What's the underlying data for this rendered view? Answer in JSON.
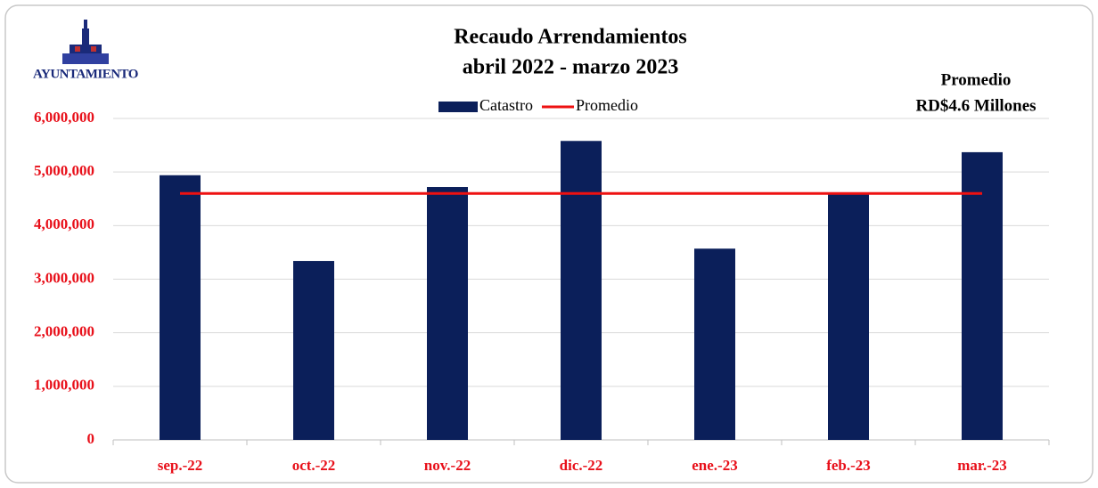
{
  "logo": {
    "text": "AYUNTAMIENTO"
  },
  "chart_data": {
    "type": "bar",
    "title": "Recaudo Arrendamientos",
    "subtitle": "abril 2022 - marzo 2023",
    "annotation": [
      "Promedio",
      "RD$4.6 Millones"
    ],
    "categories": [
      "sep.-22",
      "oct.-22",
      "nov.-22",
      "dic.-22",
      "ene.-23",
      "feb.-23",
      "mar.-23"
    ],
    "series": [
      {
        "name": "Catastro",
        "type": "bar",
        "color": "#0b1f5a",
        "values": [
          4940000,
          3340000,
          4720000,
          5580000,
          3570000,
          4620000,
          5370000
        ]
      },
      {
        "name": "Promedio",
        "type": "line",
        "color": "#ee1111",
        "values": [
          4600000,
          4600000,
          4600000,
          4600000,
          4600000,
          4600000,
          4600000
        ]
      }
    ],
    "ylim": [
      0,
      6000000
    ],
    "yticks": [
      0,
      {
        "value": 1000000,
        "label": "1,000,000"
      },
      {
        "value": 2000000,
        "label": "2,000,000"
      },
      {
        "value": 3000000,
        "label": "3,000,000"
      },
      {
        "value": 4000000,
        "label": "4,000,000"
      },
      {
        "value": 5000000,
        "label": "5,000,000"
      },
      {
        "value": 6000000,
        "label": "6,000,000"
      }
    ],
    "grid": true,
    "legend": "top"
  }
}
